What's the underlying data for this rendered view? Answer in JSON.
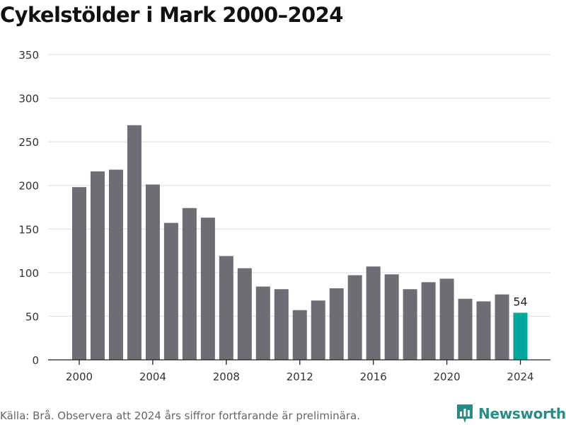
{
  "colors": {
    "bar": "#6d6d73",
    "highlight": "#00a79a",
    "brand": "#2a8c84",
    "grid": "#dddddd",
    "axis": "#222222"
  },
  "chart_data": {
    "type": "bar",
    "title": "Cykelstölder i Mark 2000–2024",
    "xlabel": "",
    "ylabel": "",
    "ylim": [
      0,
      350
    ],
    "yticks": [
      0,
      50,
      100,
      150,
      200,
      250,
      300,
      350
    ],
    "xticks": [
      2000,
      2004,
      2008,
      2012,
      2016,
      2020,
      2024
    ],
    "categories": [
      2000,
      2001,
      2002,
      2003,
      2004,
      2005,
      2006,
      2007,
      2008,
      2009,
      2010,
      2011,
      2012,
      2013,
      2014,
      2015,
      2016,
      2017,
      2018,
      2019,
      2020,
      2021,
      2022,
      2023,
      2024
    ],
    "values": [
      198,
      216,
      218,
      269,
      201,
      157,
      174,
      163,
      119,
      105,
      84,
      81,
      57,
      68,
      82,
      97,
      107,
      98,
      81,
      89,
      93,
      70,
      67,
      75,
      54
    ],
    "highlight_category": 2024,
    "data_labels": [
      {
        "category": 2024,
        "text": "54"
      }
    ],
    "grid": true
  },
  "footer": {
    "source": "Källa: Brå. Observera att 2024 års siffror fortfarande är preliminära."
  },
  "brand": {
    "name": "Newsworthy",
    "icon": "bar-chart-bubble-icon"
  }
}
